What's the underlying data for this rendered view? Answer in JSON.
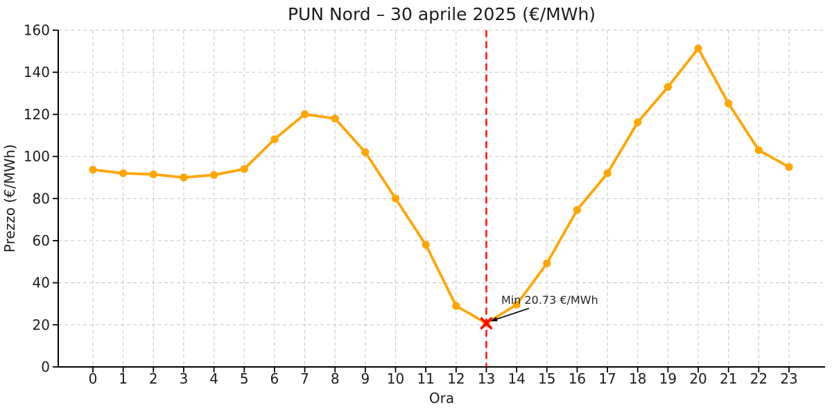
{
  "chart_data": {
    "type": "line",
    "title": "PUN Nord – 30 aprile 2025 (€/MWh)",
    "xlabel": "Ora",
    "ylabel": "Prezzo (€/MWh)",
    "x": [
      0,
      1,
      2,
      3,
      4,
      5,
      6,
      7,
      8,
      9,
      10,
      11,
      12,
      13,
      14,
      15,
      16,
      17,
      18,
      19,
      20,
      21,
      22,
      23
    ],
    "values": [
      93.7,
      92.0,
      91.5,
      90.0,
      91.2,
      94.0,
      108.2,
      120.1,
      118.0,
      102.0,
      80.0,
      58.0,
      29.0,
      20.73,
      29.6,
      49.2,
      74.6,
      92.0,
      116.2,
      133.0,
      151.3,
      125.2,
      103.0,
      95.0
    ],
    "yticks": [
      0,
      20,
      40,
      60,
      80,
      100,
      120,
      140,
      160
    ],
    "ylim": [
      0,
      160
    ],
    "grid": true,
    "legend": false,
    "annotation": {
      "label": "Min 20.73 €/MWh",
      "x": 13,
      "y": 20.73
    },
    "colors": {
      "line": "#FFA500",
      "min_marker": "#FF0000",
      "vline": "#FF0000",
      "grid": "#CCCCCC",
      "axis": "#000000",
      "text": "#1C1C1C"
    }
  }
}
